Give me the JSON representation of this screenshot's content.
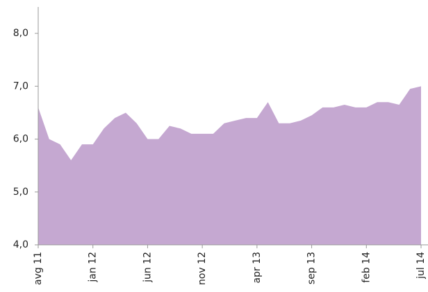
{
  "chart_data": {
    "type": "area",
    "categories": [
      "avg 11",
      null,
      null,
      null,
      null,
      "jan 12",
      null,
      null,
      null,
      null,
      "jun 12",
      null,
      null,
      null,
      null,
      "nov 12",
      null,
      null,
      null,
      null,
      "apr 13",
      null,
      null,
      null,
      null,
      "sep 13",
      null,
      null,
      null,
      null,
      "feb 14",
      null,
      null,
      null,
      null,
      "jul 14"
    ],
    "values": [
      6.6,
      6.0,
      5.9,
      5.6,
      5.9,
      5.9,
      6.2,
      6.4,
      6.5,
      6.3,
      6.0,
      6.0,
      6.25,
      6.2,
      6.1,
      6.1,
      6.1,
      6.3,
      6.35,
      6.4,
      6.4,
      6.7,
      6.3,
      6.3,
      6.35,
      6.45,
      6.6,
      6.6,
      6.65,
      6.6,
      6.6,
      6.7,
      6.7,
      6.65,
      6.95,
      7.0
    ],
    "color": "#c5a8d1",
    "ylim": [
      4,
      8.5
    ],
    "yticks": [
      {
        "value": 4,
        "label": "4,0"
      },
      {
        "value": 5,
        "label": "5,0"
      },
      {
        "value": 6,
        "label": "6,0"
      },
      {
        "value": 7,
        "label": "7,0"
      },
      {
        "value": 8,
        "label": "8,0"
      }
    ],
    "grid": false
  }
}
